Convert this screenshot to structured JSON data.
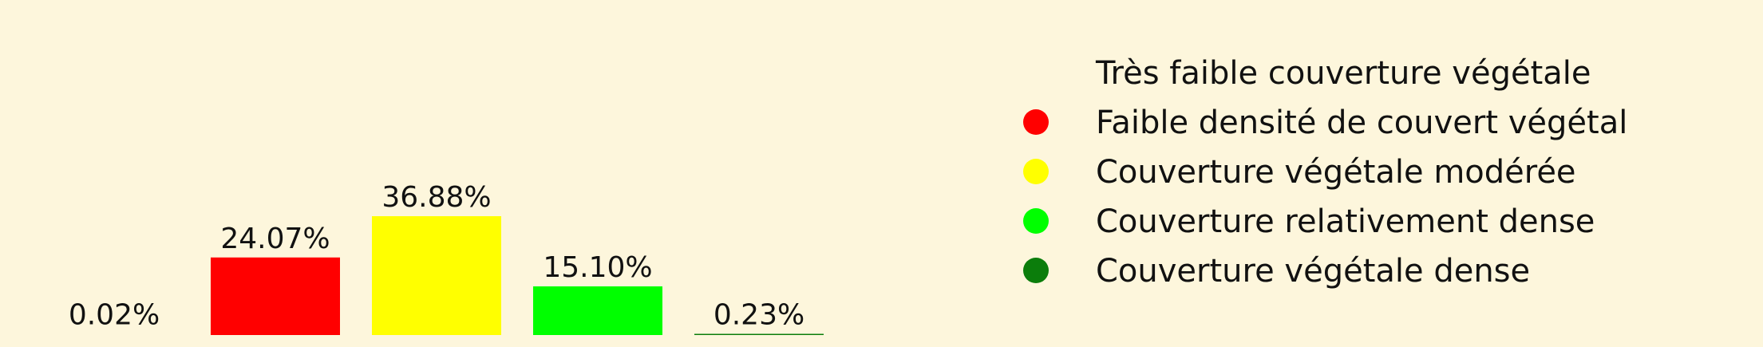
{
  "chart_data": {
    "type": "bar",
    "categories": [
      "Très faible couverture végétale",
      "Faible densité de couvert végétal",
      "Couverture végétale modérée",
      "Couverture relativement dense",
      "Couverture végétale dense"
    ],
    "values": [
      0.02,
      24.07,
      36.88,
      15.1,
      0.23
    ],
    "value_labels": [
      "0.02%",
      "24.07%",
      "36.88%",
      "15.10%",
      "0.23%"
    ],
    "colors": [
      "#fdf6dc",
      "#ff0000",
      "#ffff00",
      "#00ff00",
      "#0b7d0b"
    ],
    "ylim": [
      0,
      36.88
    ],
    "grid": false,
    "legend_position": "right",
    "title": "",
    "xlabel": "",
    "ylabel": ""
  }
}
